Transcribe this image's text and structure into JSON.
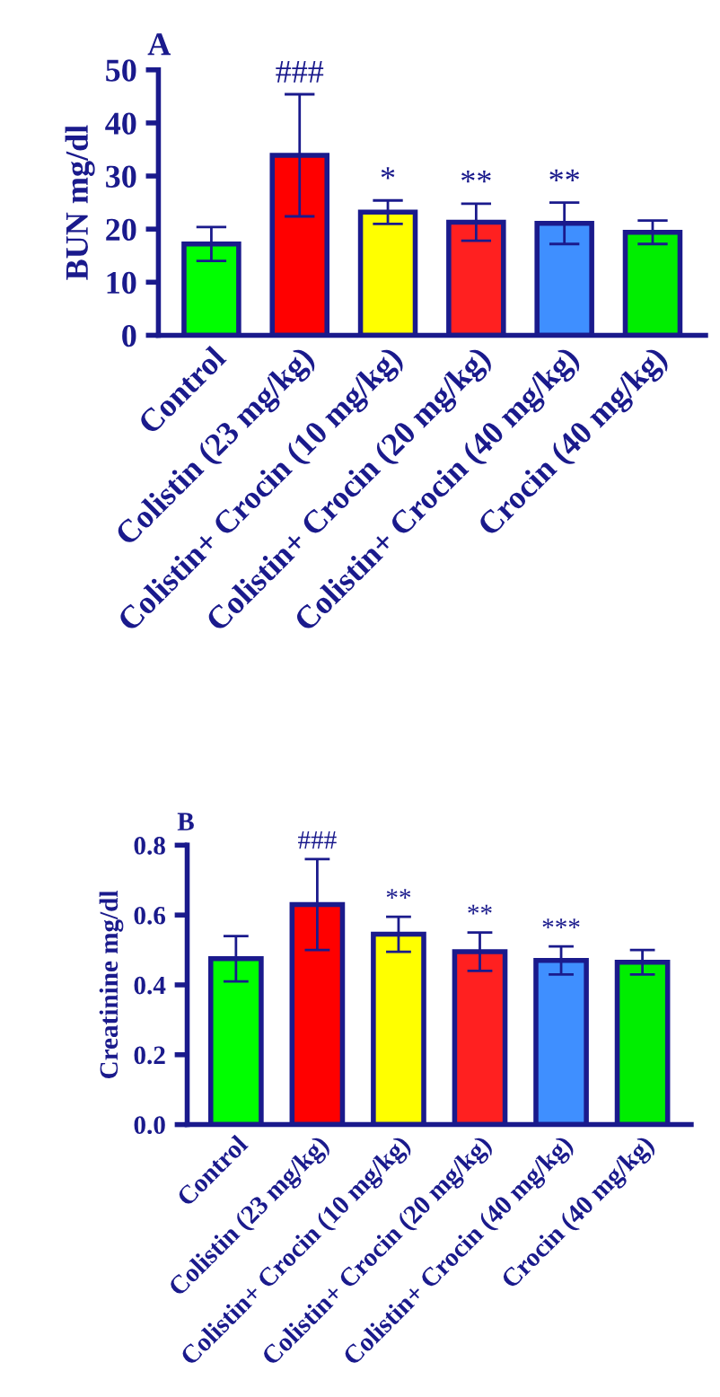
{
  "chart_data": [
    {
      "type": "bar",
      "title": "A",
      "ylabel": "BUN mg/dl",
      "categories": [
        "Control",
        "Colistin (23 mg/kg)",
        "Colistin+ Crocin (10 mg/kg)",
        "Colistin+ Crocin (20 mg/kg)",
        "Colistin+ Crocin (40 mg/kg)",
        "Crocin (40 mg/kg)"
      ],
      "values": [
        17.2,
        33.9,
        23.2,
        21.3,
        21.1,
        19.4
      ],
      "errors": [
        3.2,
        11.5,
        2.2,
        3.5,
        3.9,
        2.2
      ],
      "colors": [
        "#00ff00",
        "#ff0000",
        "#ffff00",
        "#ff2020",
        "#3f8fff",
        "#00ee00"
      ],
      "ylim": [
        0,
        50
      ],
      "yticks": [
        0,
        10,
        20,
        30,
        40,
        50
      ],
      "grid": false,
      "legend": false,
      "annotations": [
        {
          "text": "###",
          "x": "Colistin (23 mg/kg)",
          "y": 45.4
        },
        {
          "text": "*",
          "x": "Colistin+ Crocin (10 mg/kg)",
          "y": 25.4
        },
        {
          "text": "**",
          "x": "Colistin+ Crocin (20 mg/kg)",
          "y": 24.8
        },
        {
          "text": "**",
          "x": "Colistin+ Crocin (40 mg/kg)",
          "y": 25.0
        }
      ]
    },
    {
      "type": "bar",
      "title": "B",
      "ylabel": "Creatinine mg/dl",
      "categories": [
        "Control",
        "Colistin (23 mg/kg)",
        "Colistin+ Crocin (10 mg/kg)",
        "Colistin+ Crocin (20 mg/kg)",
        "Colistin+ Crocin (40 mg/kg)",
        "Crocin (40 mg/kg)"
      ],
      "values": [
        0.475,
        0.63,
        0.545,
        0.495,
        0.47,
        0.465
      ],
      "errors": [
        0.065,
        0.13,
        0.05,
        0.055,
        0.04,
        0.035
      ],
      "colors": [
        "#00ff00",
        "#ff0000",
        "#ffff00",
        "#ff2020",
        "#3f8fff",
        "#00ee00"
      ],
      "ylim": [
        0,
        0.8
      ],
      "yticks": [
        {
          "value": 0,
          "label": "0.0"
        },
        0.2,
        0.4,
        0.6,
        0.8
      ],
      "grid": false,
      "legend": false,
      "annotations": [
        {
          "text": "###",
          "x": "Colistin (23 mg/kg)",
          "y": 0.76
        },
        {
          "text": "**",
          "x": "Colistin+ Crocin (10 mg/kg)",
          "y": 0.595
        },
        {
          "text": "**",
          "x": "Colistin+ Crocin (20 mg/kg)",
          "y": 0.55
        },
        {
          "text": "***",
          "x": "Colistin+ Crocin (40 mg/kg)",
          "y": 0.51
        }
      ]
    }
  ]
}
